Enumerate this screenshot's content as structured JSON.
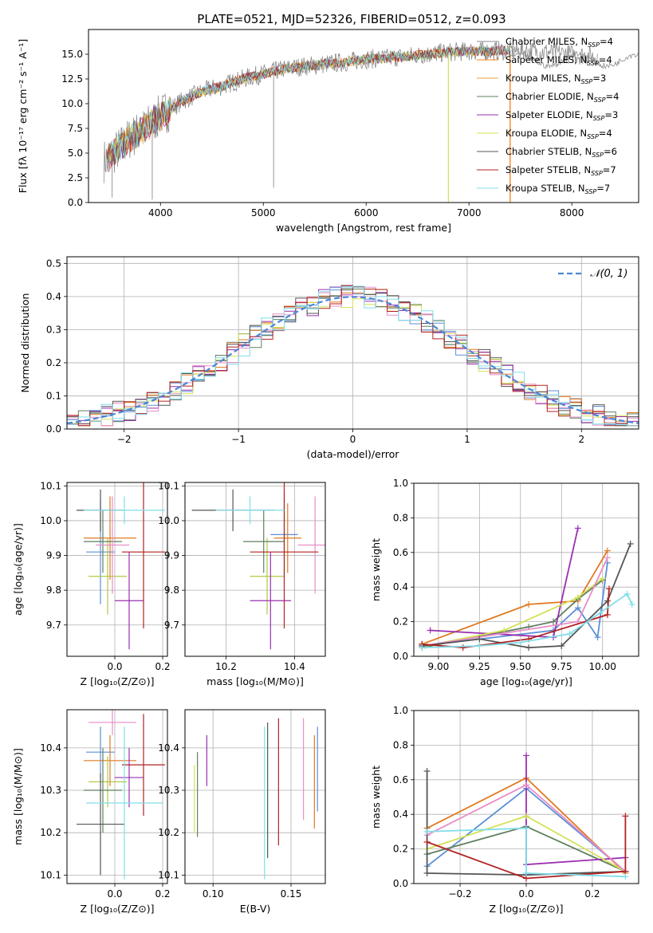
{
  "figure": {
    "title": "PLATE=0521, MJD=52326, FIBERID=0512, z=0.093",
    "colors": [
      "#8c8c8c",
      "#ff7f0e",
      "#e8a33d",
      "#5f7f5f",
      "#9a2fb0",
      "#d4e157",
      "#555555",
      "#b22222",
      "#80deea"
    ]
  },
  "chart_data": [
    {
      "id": "spectrum",
      "type": "line",
      "title": "PLATE=0521, MJD=52326, FIBERID=0512, z=0.093",
      "xlabel": "wavelength [Angstrom, rest frame]",
      "ylabel": "Flux [fλ 10⁻¹⁷ erg cm⁻² s⁻¹ A⁻¹]",
      "xlim": [
        3300,
        8650
      ],
      "ylim": [
        0,
        17.5
      ],
      "xticks": [
        4000,
        5000,
        6000,
        7000,
        8000
      ],
      "yticks": [
        0.0,
        2.5,
        5.0,
        7.5,
        10.0,
        12.5,
        15.0
      ],
      "grid": false,
      "legend_position": "right",
      "continuum_x": [
        3450,
        3550,
        3700,
        3850,
        4000,
        4200,
        4400,
        4600,
        4800,
        5000,
        5200,
        5400,
        5600,
        5800,
        6000,
        6200,
        6400,
        6600,
        6800,
        7000,
        7200,
        7400,
        7600,
        7800,
        8000,
        8200
      ],
      "continuum_y": [
        4.2,
        5.0,
        6.5,
        7.5,
        8.8,
        10.2,
        11.2,
        11.8,
        12.5,
        13.0,
        13.5,
        13.8,
        14.0,
        14.2,
        14.5,
        14.6,
        14.8,
        15.0,
        15.2,
        15.3,
        15.3,
        15.4,
        15.3,
        15.2,
        15.0,
        14.8
      ],
      "legend": [
        {
          "label": "Chabrier MILES, N",
          "sub": "SSP",
          "tail": "=4"
        },
        {
          "label": "Salpeter MILES, N",
          "sub": "SSP",
          "tail": "=4"
        },
        {
          "label": "Kroupa MILES, N",
          "sub": "SSP",
          "tail": "=3"
        },
        {
          "label": "Chabrier ELODIE, N",
          "sub": "SSP",
          "tail": "=4"
        },
        {
          "label": "Salpeter ELODIE, N",
          "sub": "SSP",
          "tail": "=3"
        },
        {
          "label": "Kroupa ELODIE, N",
          "sub": "SSP",
          "tail": "=4"
        },
        {
          "label": "Chabrier STELIB, N",
          "sub": "SSP",
          "tail": "=6"
        },
        {
          "label": "Salpeter STELIB, N",
          "sub": "SSP",
          "tail": "=7"
        },
        {
          "label": "Kroupa STELIB, N",
          "sub": "SSP",
          "tail": "=7"
        }
      ]
    },
    {
      "id": "residuals",
      "type": "area",
      "xlabel": "(data-model)/error",
      "ylabel": "Normed distribution",
      "xlim": [
        -2.5,
        2.5
      ],
      "ylim": [
        0,
        0.52
      ],
      "xticks": [
        -2,
        -1,
        0,
        1,
        2
      ],
      "yticks": [
        0.0,
        0.1,
        0.2,
        0.3,
        0.4,
        0.5
      ],
      "grid": true,
      "legend_position": "top-right",
      "reference_label": "𝒩(0, 1)",
      "bin_width": 0.1
    },
    {
      "id": "age_vs_Z",
      "type": "scatter",
      "xlabel": "Z [log₁₀(Z/Z⊙)]",
      "ylabel": "age  [log₁₀(age/yr)]",
      "xlim": [
        -0.2,
        0.22
      ],
      "ylim": [
        9.61,
        10.11
      ],
      "xticks": [
        0.0,
        0.2
      ],
      "yticks": [
        9.7,
        9.8,
        9.9,
        10.0,
        10.1
      ],
      "grid": true,
      "points": [
        {
          "x": -0.06,
          "y": 9.91,
          "xerr": 0.06,
          "yerr": 0.15,
          "color": "#5b8fd6"
        },
        {
          "x": -0.02,
          "y": 9.95,
          "xerr": 0.11,
          "yerr": 0.12,
          "color": "#e07a20"
        },
        {
          "x": -0.03,
          "y": 9.84,
          "xerr": 0.08,
          "yerr": 0.11,
          "color": "#b0c848"
        },
        {
          "x": -0.05,
          "y": 9.94,
          "xerr": 0.08,
          "yerr": 0.09,
          "color": "#5f7f5f"
        },
        {
          "x": 0.06,
          "y": 9.77,
          "xerr": 0.06,
          "yerr": 0.14,
          "color": "#9a2fb0"
        },
        {
          "x": -0.01,
          "y": 9.93,
          "xerr": 0.07,
          "yerr": 0.14,
          "color": "#e88ec8"
        },
        {
          "x": -0.06,
          "y": 10.03,
          "xerr": 0.1,
          "yerr": 0.06,
          "color": "#555555"
        },
        {
          "x": 0.12,
          "y": 9.91,
          "xerr": 0.09,
          "yerr": 0.22,
          "color": "#b22222"
        },
        {
          "x": 0.04,
          "y": 10.03,
          "xerr": 0.17,
          "yerr": 0.04,
          "color": "#80deea"
        }
      ]
    },
    {
      "id": "age_vs_mass",
      "type": "scatter",
      "xlabel": "mass [log₁₀(M/M⊙)]",
      "ylabel": "",
      "xlim": [
        10.08,
        10.49
      ],
      "ylim": [
        9.61,
        10.11
      ],
      "xticks": [
        10.2,
        10.4
      ],
      "yticks": [
        9.7,
        9.8,
        9.9,
        10.0,
        10.1
      ],
      "grid": true,
      "points": [
        {
          "x": 10.37,
          "y": 9.96,
          "xerr": 0.04,
          "yerr": 0.12,
          "color": "#5b8fd6"
        },
        {
          "x": 10.38,
          "y": 9.95,
          "xerr": 0.04,
          "yerr": 0.1,
          "color": "#e07a20"
        },
        {
          "x": 10.32,
          "y": 9.84,
          "xerr": 0.05,
          "yerr": 0.11,
          "color": "#b0c848"
        },
        {
          "x": 10.31,
          "y": 9.94,
          "xerr": 0.06,
          "yerr": 0.09,
          "color": "#5f7f5f"
        },
        {
          "x": 10.33,
          "y": 9.77,
          "xerr": 0.06,
          "yerr": 0.14,
          "color": "#9a2fb0"
        },
        {
          "x": 10.46,
          "y": 9.93,
          "xerr": 0.05,
          "yerr": 0.14,
          "color": "#e88ec8"
        },
        {
          "x": 10.22,
          "y": 10.03,
          "xerr": 0.12,
          "yerr": 0.06,
          "color": "#555555"
        },
        {
          "x": 10.37,
          "y": 9.91,
          "xerr": 0.1,
          "yerr": 0.22,
          "color": "#b22222"
        },
        {
          "x": 10.27,
          "y": 10.03,
          "xerr": 0.1,
          "yerr": 0.04,
          "color": "#80deea"
        }
      ]
    },
    {
      "id": "weight_vs_age",
      "type": "line",
      "xlabel": "age  [log₁₀(age/yr)]",
      "ylabel": "mass weight",
      "xlim": [
        8.85,
        10.22
      ],
      "ylim": [
        0,
        1.0
      ],
      "xticks": [
        9.0,
        9.25,
        9.5,
        9.75,
        10.0
      ],
      "yticks": [
        0.0,
        0.2,
        0.4,
        0.6,
        0.8,
        1.0
      ],
      "grid": true,
      "series": [
        {
          "color": "#5b8fd6",
          "x": [
            8.9,
            9.7,
            9.85,
            9.97,
            10.03
          ],
          "y": [
            0.06,
            0.15,
            0.28,
            0.11,
            0.54
          ]
        },
        {
          "color": "#e07a20",
          "x": [
            8.9,
            9.55,
            9.85,
            10.03
          ],
          "y": [
            0.07,
            0.3,
            0.32,
            0.61
          ]
        },
        {
          "color": "#5f7f5f",
          "x": [
            8.9,
            9.55,
            9.7,
            9.85,
            10.0
          ],
          "y": [
            0.05,
            0.17,
            0.2,
            0.33,
            0.44
          ]
        },
        {
          "color": "#9a2fb0",
          "x": [
            8.95,
            9.7,
            9.85
          ],
          "y": [
            0.15,
            0.11,
            0.74
          ]
        },
        {
          "color": "#d4e157",
          "x": [
            8.92,
            9.4,
            9.85,
            10.0
          ],
          "y": [
            0.06,
            0.15,
            0.34,
            0.45
          ]
        },
        {
          "color": "#e88ec8",
          "x": [
            8.9,
            9.85,
            10.03
          ],
          "y": [
            0.06,
            0.2,
            0.57
          ]
        },
        {
          "color": "#555555",
          "x": [
            8.9,
            9.25,
            9.55,
            9.75,
            10.03,
            10.17
          ],
          "y": [
            0.06,
            0.1,
            0.05,
            0.06,
            0.32,
            0.65
          ]
        },
        {
          "color": "#b22222",
          "x": [
            8.9,
            9.15,
            9.55,
            10.03,
            10.04
          ],
          "y": [
            0.07,
            0.05,
            0.1,
            0.24,
            0.39
          ]
        },
        {
          "color": "#80deea",
          "x": [
            8.9,
            9.25,
            9.5,
            9.8,
            10.15,
            10.18
          ],
          "y": [
            0.05,
            0.06,
            0.08,
            0.13,
            0.36,
            0.3
          ]
        }
      ]
    },
    {
      "id": "mass_vs_Z",
      "type": "scatter",
      "xlabel": "Z [log₁₀(Z/Z⊙)]",
      "ylabel": "mass [log₁₀(M/M⊙)]",
      "xlim": [
        -0.2,
        0.22
      ],
      "ylim": [
        10.08,
        10.49
      ],
      "xticks": [
        0.0,
        0.2
      ],
      "yticks": [
        10.1,
        10.2,
        10.3,
        10.4
      ],
      "grid": true,
      "points": [
        {
          "x": -0.06,
          "y": 10.39,
          "xerr": 0.06,
          "yerr": 0.06,
          "color": "#5b8fd6"
        },
        {
          "x": -0.02,
          "y": 10.37,
          "xerr": 0.11,
          "yerr": 0.06,
          "color": "#e07a20"
        },
        {
          "x": -0.03,
          "y": 10.32,
          "xerr": 0.08,
          "yerr": 0.06,
          "color": "#b0c848"
        },
        {
          "x": -0.05,
          "y": 10.3,
          "xerr": 0.08,
          "yerr": 0.1,
          "color": "#5f7f5f"
        },
        {
          "x": 0.06,
          "y": 10.33,
          "xerr": 0.06,
          "yerr": 0.07,
          "color": "#9a2fb0"
        },
        {
          "x": -0.01,
          "y": 10.46,
          "xerr": 0.1,
          "yerr": 0.03,
          "color": "#e88ec8"
        },
        {
          "x": -0.06,
          "y": 10.22,
          "xerr": 0.1,
          "yerr": 0.12,
          "color": "#555555"
        },
        {
          "x": 0.12,
          "y": 10.36,
          "xerr": 0.09,
          "yerr": 0.12,
          "color": "#b22222"
        },
        {
          "x": 0.04,
          "y": 10.27,
          "xerr": 0.16,
          "yerr": 0.18,
          "color": "#80deea"
        }
      ]
    },
    {
      "id": "mass_vs_ebv",
      "type": "scatter",
      "xlabel": "E(B-V)",
      "ylabel": "",
      "xlim": [
        0.082,
        0.172
      ],
      "ylim": [
        10.08,
        10.49
      ],
      "xticks": [
        0.1,
        0.15
      ],
      "yticks": [
        10.1,
        10.2,
        10.3,
        10.4
      ],
      "grid": true,
      "points": [
        {
          "x": 0.167,
          "y": 10.35,
          "yerr": 0.1,
          "color": "#5b8fd6"
        },
        {
          "x": 0.165,
          "y": 10.32,
          "yerr": 0.11,
          "color": "#e07a20"
        },
        {
          "x": 0.088,
          "y": 10.28,
          "yerr": 0.08,
          "color": "#d4e157"
        },
        {
          "x": 0.09,
          "y": 10.29,
          "yerr": 0.1,
          "color": "#5f7f5f"
        },
        {
          "x": 0.096,
          "y": 10.37,
          "yerr": 0.06,
          "color": "#9a2fb0"
        },
        {
          "x": 0.158,
          "y": 10.35,
          "yerr": 0.12,
          "color": "#e88ec8"
        },
        {
          "x": 0.135,
          "y": 10.3,
          "yerr": 0.16,
          "color": "#555555"
        },
        {
          "x": 0.142,
          "y": 10.32,
          "yerr": 0.15,
          "color": "#b22222"
        },
        {
          "x": 0.133,
          "y": 10.27,
          "yerr": 0.18,
          "color": "#80deea"
        }
      ]
    },
    {
      "id": "weight_vs_Z",
      "type": "line",
      "xlabel": "Z [log₁₀(Z/Z⊙)]",
      "ylabel": "mass weight",
      "xlim": [
        -0.34,
        0.34
      ],
      "ylim": [
        0,
        1.0
      ],
      "xticks": [
        -0.2,
        0.0,
        0.2
      ],
      "yticks": [
        0.0,
        0.2,
        0.4,
        0.6,
        0.8,
        1.0
      ],
      "grid": true,
      "series": [
        {
          "color": "#5b8fd6",
          "x": [
            -0.3,
            0.0,
            0.3
          ],
          "y": [
            0.1,
            0.55,
            0.07
          ]
        },
        {
          "color": "#e07a20",
          "x": [
            -0.3,
            0.0,
            0.3
          ],
          "y": [
            0.32,
            0.61,
            0.06
          ]
        },
        {
          "color": "#5f7f5f",
          "x": [
            -0.3,
            0.0,
            0.3
          ],
          "y": [
            0.17,
            0.33,
            0.07
          ]
        },
        {
          "color": "#9a2fb0",
          "x": [
            0.0,
            0.0,
            0.3
          ],
          "y": [
            0.74,
            0.11,
            0.15
          ]
        },
        {
          "color": "#d4e157",
          "x": [
            -0.3,
            0.0,
            0.3
          ],
          "y": [
            0.2,
            0.39,
            0.07
          ]
        },
        {
          "color": "#e88ec8",
          "x": [
            -0.3,
            0.0,
            0.3
          ],
          "y": [
            0.28,
            0.57,
            0.07
          ]
        },
        {
          "color": "#555555",
          "x": [
            -0.3,
            -0.3,
            0.0,
            0.3
          ],
          "y": [
            0.65,
            0.06,
            0.05,
            0.07
          ]
        },
        {
          "color": "#b22222",
          "x": [
            -0.3,
            0.0,
            0.3,
            0.3
          ],
          "y": [
            0.24,
            0.03,
            0.07,
            0.39
          ]
        },
        {
          "color": "#80deea",
          "x": [
            -0.3,
            0.0,
            0.0,
            0.3
          ],
          "y": [
            0.3,
            0.32,
            0.06,
            0.04
          ]
        }
      ]
    }
  ]
}
